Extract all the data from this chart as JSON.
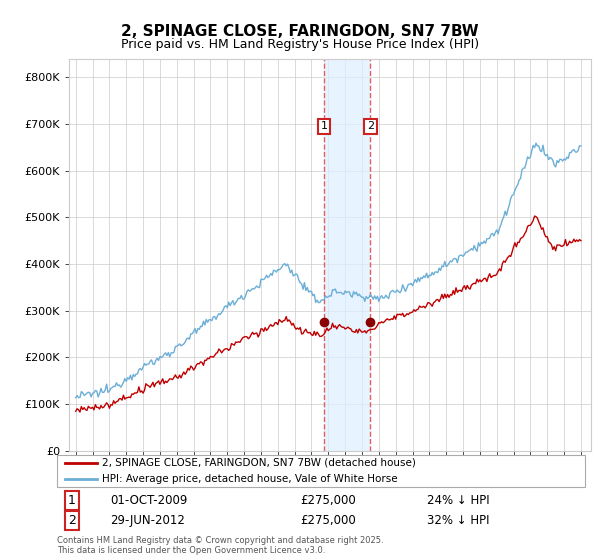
{
  "title": "2, SPINAGE CLOSE, FARINGDON, SN7 7BW",
  "subtitle": "Price paid vs. HM Land Registry's House Price Index (HPI)",
  "ylabel_ticks": [
    "£0",
    "£100K",
    "£200K",
    "£300K",
    "£400K",
    "£500K",
    "£600K",
    "£700K",
    "£800K"
  ],
  "ytick_values": [
    0,
    100000,
    200000,
    300000,
    400000,
    500000,
    600000,
    700000,
    800000
  ],
  "ylim": [
    0,
    840000
  ],
  "legend_line1": "2, SPINAGE CLOSE, FARINGDON, SN7 7BW (detached house)",
  "legend_line2": "HPI: Average price, detached house, Vale of White Horse",
  "sale1_date": "01-OCT-2009",
  "sale1_price": 275000,
  "sale1_label": "1",
  "sale1_pct": "24% ↓ HPI",
  "sale2_date": "29-JUN-2012",
  "sale2_price": 275000,
  "sale2_label": "2",
  "sale2_pct": "32% ↓ HPI",
  "footnote": "Contains HM Land Registry data © Crown copyright and database right 2025.\nThis data is licensed under the Open Government Licence v3.0.",
  "hpi_color": "#6baed6",
  "price_color": "#c00000",
  "sale_marker_color": "#8b0000",
  "vline_color": "#e06060",
  "shade_color": "#ddeeff",
  "background_color": "#ffffff",
  "grid_color": "#cccccc",
  "sale1_year": 2009.75,
  "sale2_year": 2012.5
}
